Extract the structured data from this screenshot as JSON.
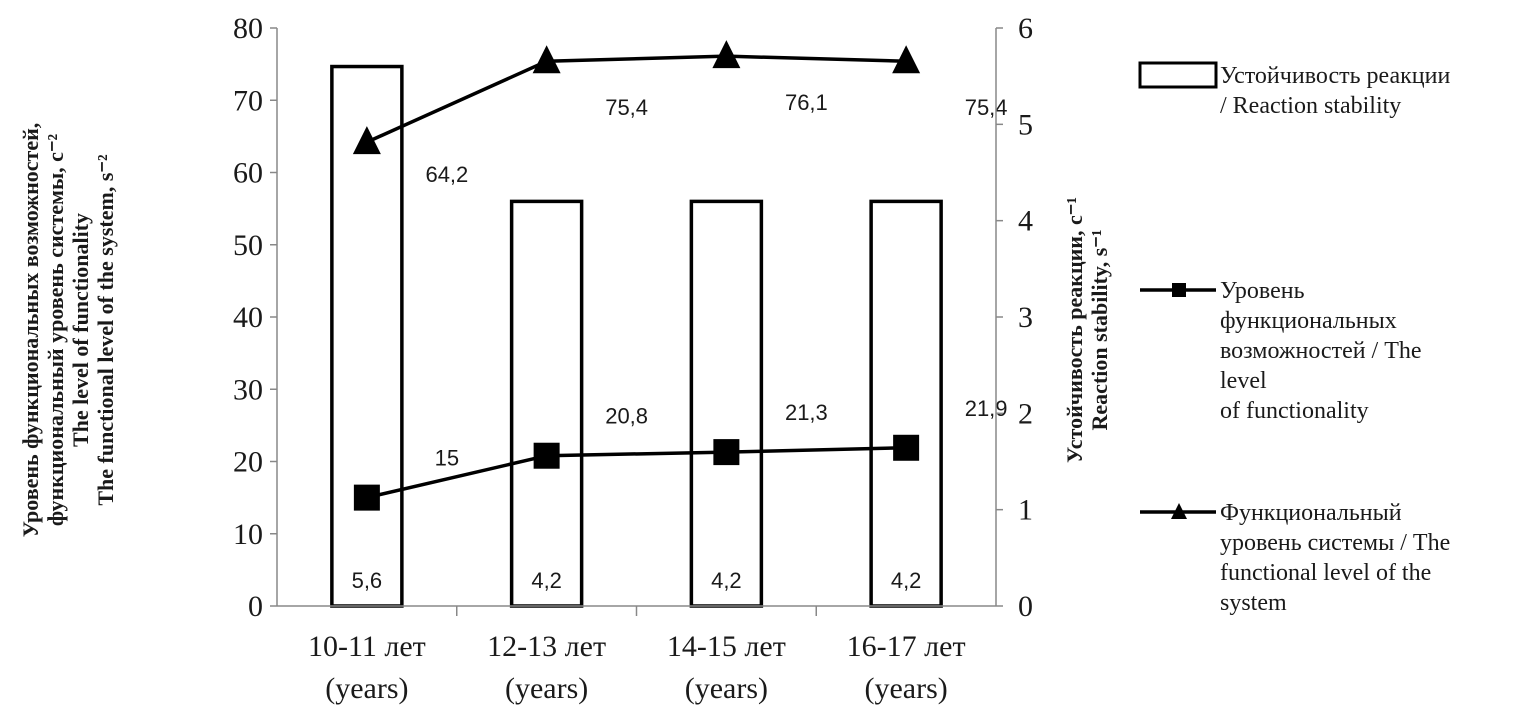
{
  "chart_data": {
    "type": "bar+line",
    "categories": [
      {
        "line1": "10-11 лет",
        "line2": "(years)"
      },
      {
        "line1": "12-13 лет",
        "line2": "(years)"
      },
      {
        "line1": "14-15 лет",
        "line2": "(years)"
      },
      {
        "line1": "16-17 лет",
        "line2": "(years)"
      }
    ],
    "left_axis": {
      "ylim": [
        0,
        80
      ],
      "ticks": [
        "0",
        "10",
        "20",
        "30",
        "40",
        "50",
        "60",
        "70",
        "80"
      ],
      "label_lines": [
        "Уровень функциональных возможностей,",
        "функциональный уровень системы, с⁻²",
        "The level of functionality",
        "The functional level of the system, s⁻²"
      ]
    },
    "right_axis": {
      "ylim": [
        0,
        6
      ],
      "ticks": [
        "0",
        "1",
        "2",
        "3",
        "4",
        "5",
        "6"
      ],
      "label_lines": [
        "Устойчивость реакции, с⁻¹",
        "Reaction stability, s⁻¹"
      ]
    },
    "series": [
      {
        "name": "Устойчивость реакции / Reaction stability",
        "type": "bar",
        "axis": "right",
        "values": [
          5.6,
          4.2,
          4.2,
          4.2
        ],
        "labels": [
          "5,6",
          "4,2",
          "4,2",
          "4,2"
        ]
      },
      {
        "name": "Уровень функциональных возможностей / The level of functionality",
        "type": "line",
        "marker": "square",
        "axis": "left",
        "values": [
          15,
          20.8,
          21.3,
          21.9
        ],
        "labels": [
          "15",
          "20,8",
          "21,3",
          "21,9"
        ]
      },
      {
        "name": "Функциональный уровень системы / The functional level of the system",
        "type": "line",
        "marker": "triangle",
        "axis": "left",
        "values": [
          64.2,
          75.4,
          76.1,
          75.4
        ],
        "labels": [
          "64,2",
          "75,4",
          "76,1",
          "75,4"
        ]
      }
    ],
    "legend": {
      "placement": "right",
      "items": [
        {
          "marker": "bar",
          "lines": [
            "Устойчивость реакции",
            "/ Reaction stability"
          ]
        },
        {
          "marker": "square",
          "lines": [
            "Уровень",
            "функциональных",
            "возможностей / The",
            "level",
            "of functionality"
          ]
        },
        {
          "marker": "triangle",
          "lines": [
            "Функциональный",
            "уровень системы / The",
            "functional level of the",
            "system"
          ]
        }
      ]
    },
    "grid": false
  }
}
